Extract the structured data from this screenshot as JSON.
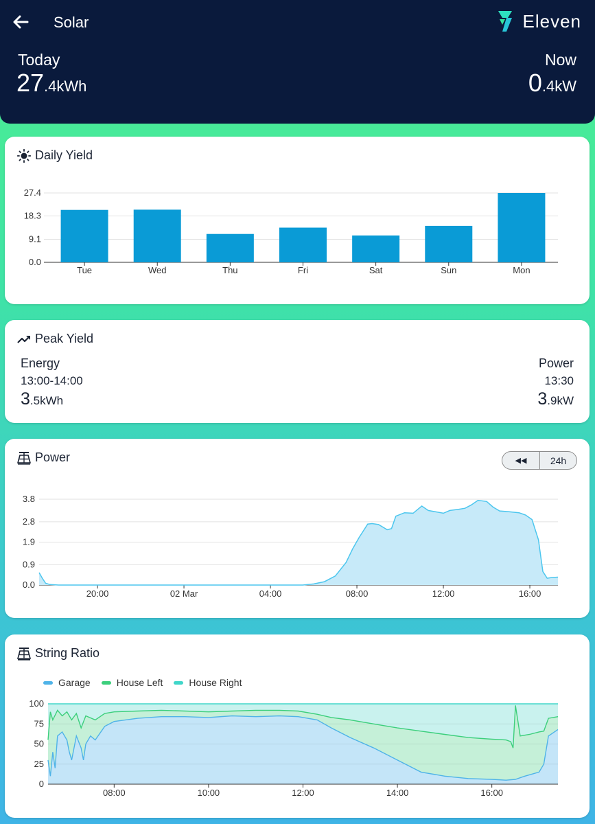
{
  "header": {
    "title": "Solar",
    "brand": "Eleven",
    "today": {
      "label": "Today",
      "int": "27",
      "dec": ".4",
      "unit": "kWh"
    },
    "now": {
      "label": "Now",
      "int": "0",
      "dec": ".4",
      "unit": "kW"
    }
  },
  "colors": {
    "header_bg": "#0a1a3c",
    "bar": "#0a9bd6",
    "power_line": "#4cc6ee",
    "power_fill": "#c7eaf9",
    "garage": "#4fb3e8",
    "house_left": "#3ccf7c",
    "house_right": "#40d6c9"
  },
  "daily": {
    "title": "Daily Yield",
    "icon": "sun-icon",
    "chart_data": {
      "type": "bar",
      "categories": [
        "Tue",
        "Wed",
        "Thu",
        "Fri",
        "Sat",
        "Sun",
        "Mon"
      ],
      "values": [
        20.7,
        20.8,
        11.2,
        13.7,
        10.6,
        14.4,
        27.4
      ],
      "ylim": [
        0,
        27.4
      ],
      "yticks": [
        "0.0",
        "9.1",
        "18.3",
        "27.4"
      ],
      "ytick_values": [
        0,
        9.1,
        18.3,
        27.4
      ]
    }
  },
  "peak": {
    "title": "Peak Yield",
    "icon": "trending-up-icon",
    "energy": {
      "label": "Energy",
      "time": "13:00-14:00",
      "int": "3",
      "dec": ".5",
      "unit": "kWh"
    },
    "power": {
      "label": "Power",
      "time": "13:30",
      "int": "3",
      "dec": ".9",
      "unit": "kW"
    }
  },
  "power": {
    "title": "Power",
    "icon": "solar-panel-icon",
    "controls": {
      "rewind": "◀◀",
      "range": "24h"
    },
    "chart_data": {
      "type": "area",
      "ylim": [
        0,
        3.8
      ],
      "yticks": [
        "0.0",
        "0.9",
        "1.9",
        "2.8",
        "3.8"
      ],
      "ytick_values": [
        0,
        0.9,
        1.9,
        2.8,
        3.8
      ],
      "xticks": [
        "20:00",
        "02 Mar",
        "04:00",
        "08:00",
        "12:00",
        "16:00"
      ],
      "xtick_hours": [
        20,
        24,
        28,
        32,
        36,
        40
      ],
      "xlim_hours": [
        17.3,
        41.3
      ],
      "x_hours": [
        17.3,
        17.45,
        17.6,
        17.8,
        18.2,
        29.5,
        30.0,
        30.5,
        31.0,
        31.5,
        31.8,
        32.1,
        32.5,
        32.7,
        33.0,
        33.4,
        33.6,
        33.8,
        34.2,
        34.6,
        35.0,
        35.3,
        35.6,
        36.0,
        36.3,
        36.7,
        37.0,
        37.3,
        37.6,
        38.0,
        38.3,
        38.6,
        39.0,
        39.5,
        39.8,
        40.1,
        40.4,
        40.6,
        40.8,
        41.0,
        41.3
      ],
      "values": [
        0.55,
        0.3,
        0.08,
        0.02,
        0.0,
        0.0,
        0.05,
        0.15,
        0.4,
        1.0,
        1.6,
        2.1,
        2.7,
        2.72,
        2.68,
        2.45,
        2.5,
        3.05,
        3.2,
        3.18,
        3.5,
        3.3,
        3.25,
        3.18,
        3.3,
        3.35,
        3.4,
        3.55,
        3.75,
        3.7,
        3.45,
        3.28,
        3.25,
        3.2,
        3.1,
        2.9,
        2.0,
        0.6,
        0.3,
        0.33,
        0.35
      ]
    }
  },
  "strings": {
    "title": "String Ratio",
    "icon": "solar-panel-icon",
    "legend": [
      "Garage",
      "House Left",
      "House Right"
    ],
    "chart_data": {
      "type": "area",
      "ylim": [
        0,
        100
      ],
      "yticks": [
        "0",
        "25",
        "50",
        "75",
        "100"
      ],
      "ytick_values": [
        0,
        25,
        50,
        75,
        100
      ],
      "xticks": [
        "08:00",
        "10:00",
        "12:00",
        "14:00",
        "16:00"
      ],
      "xtick_hours": [
        8,
        10,
        12,
        14,
        16
      ],
      "xlim_hours": [
        6.6,
        17.4
      ],
      "series": [
        {
          "name": "Garage",
          "x": [
            6.6,
            6.65,
            6.7,
            6.75,
            6.8,
            6.9,
            7.0,
            7.05,
            7.1,
            7.2,
            7.3,
            7.35,
            7.4,
            7.5,
            7.6,
            7.8,
            8.0,
            8.5,
            9.0,
            9.5,
            10.0,
            10.5,
            11.0,
            11.5,
            11.9,
            12.3,
            12.6,
            13.0,
            13.5,
            14.0,
            14.5,
            15.0,
            15.5,
            16.0,
            16.3,
            16.5,
            16.7,
            17.0,
            17.1,
            17.2,
            17.4
          ],
          "values": [
            30,
            10,
            40,
            20,
            60,
            65,
            55,
            40,
            30,
            60,
            45,
            30,
            50,
            60,
            55,
            72,
            78,
            82,
            84,
            84,
            83,
            85,
            84,
            85,
            84,
            80,
            70,
            58,
            45,
            30,
            15,
            10,
            7,
            6,
            5,
            6,
            10,
            15,
            25,
            60,
            68
          ]
        },
        {
          "name": "House Left",
          "x": [
            6.6,
            6.65,
            6.7,
            6.8,
            6.9,
            7.0,
            7.1,
            7.2,
            7.3,
            7.4,
            7.6,
            7.8,
            8.0,
            8.5,
            9.0,
            9.5,
            10.0,
            10.5,
            11.0,
            11.5,
            11.9,
            12.3,
            12.6,
            13.0,
            13.5,
            14.0,
            14.5,
            15.0,
            15.5,
            16.0,
            16.3,
            16.4,
            16.45,
            16.5,
            16.6,
            16.8,
            17.0,
            17.1,
            17.2,
            17.4
          ],
          "values": [
            55,
            90,
            80,
            92,
            85,
            90,
            80,
            88,
            70,
            85,
            80,
            88,
            90,
            91,
            92,
            91,
            90,
            91,
            92,
            92,
            91,
            87,
            83,
            80,
            75,
            70,
            66,
            62,
            58,
            56,
            55,
            53,
            45,
            98,
            60,
            62,
            65,
            66,
            82,
            84
          ]
        },
        {
          "name": "House Right",
          "x": [
            6.6,
            17.4
          ],
          "values": [
            100,
            100
          ]
        }
      ]
    }
  }
}
